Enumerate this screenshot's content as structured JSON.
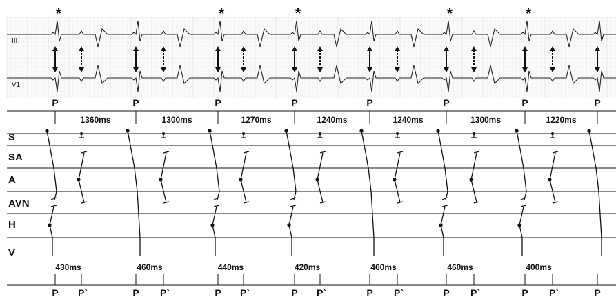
{
  "ecg": {
    "lead_top": "III",
    "lead_bottom": "V1",
    "asterisk": "*",
    "asterisk_beats": [
      0,
      2,
      3,
      5,
      6
    ]
  },
  "beat_labels": {
    "P": "P",
    "P_prime": "P`"
  },
  "intervals_top": [
    "1360ms",
    "1300ms",
    "1270ms",
    "1240ms",
    "1240ms",
    "1300ms",
    "1220ms"
  ],
  "intervals_bottom": [
    "430ms",
    "460ms",
    "440ms",
    "420ms",
    "460ms",
    "460ms",
    "400ms"
  ],
  "ladder_rows": [
    "S",
    "SA",
    "A",
    "AVN",
    "H",
    "V"
  ],
  "colors": {
    "ink": "#111111",
    "grid": "#d9d9d9",
    "grid_fine": "#eeeeee",
    "ecg_bg": "#fafafa"
  }
}
